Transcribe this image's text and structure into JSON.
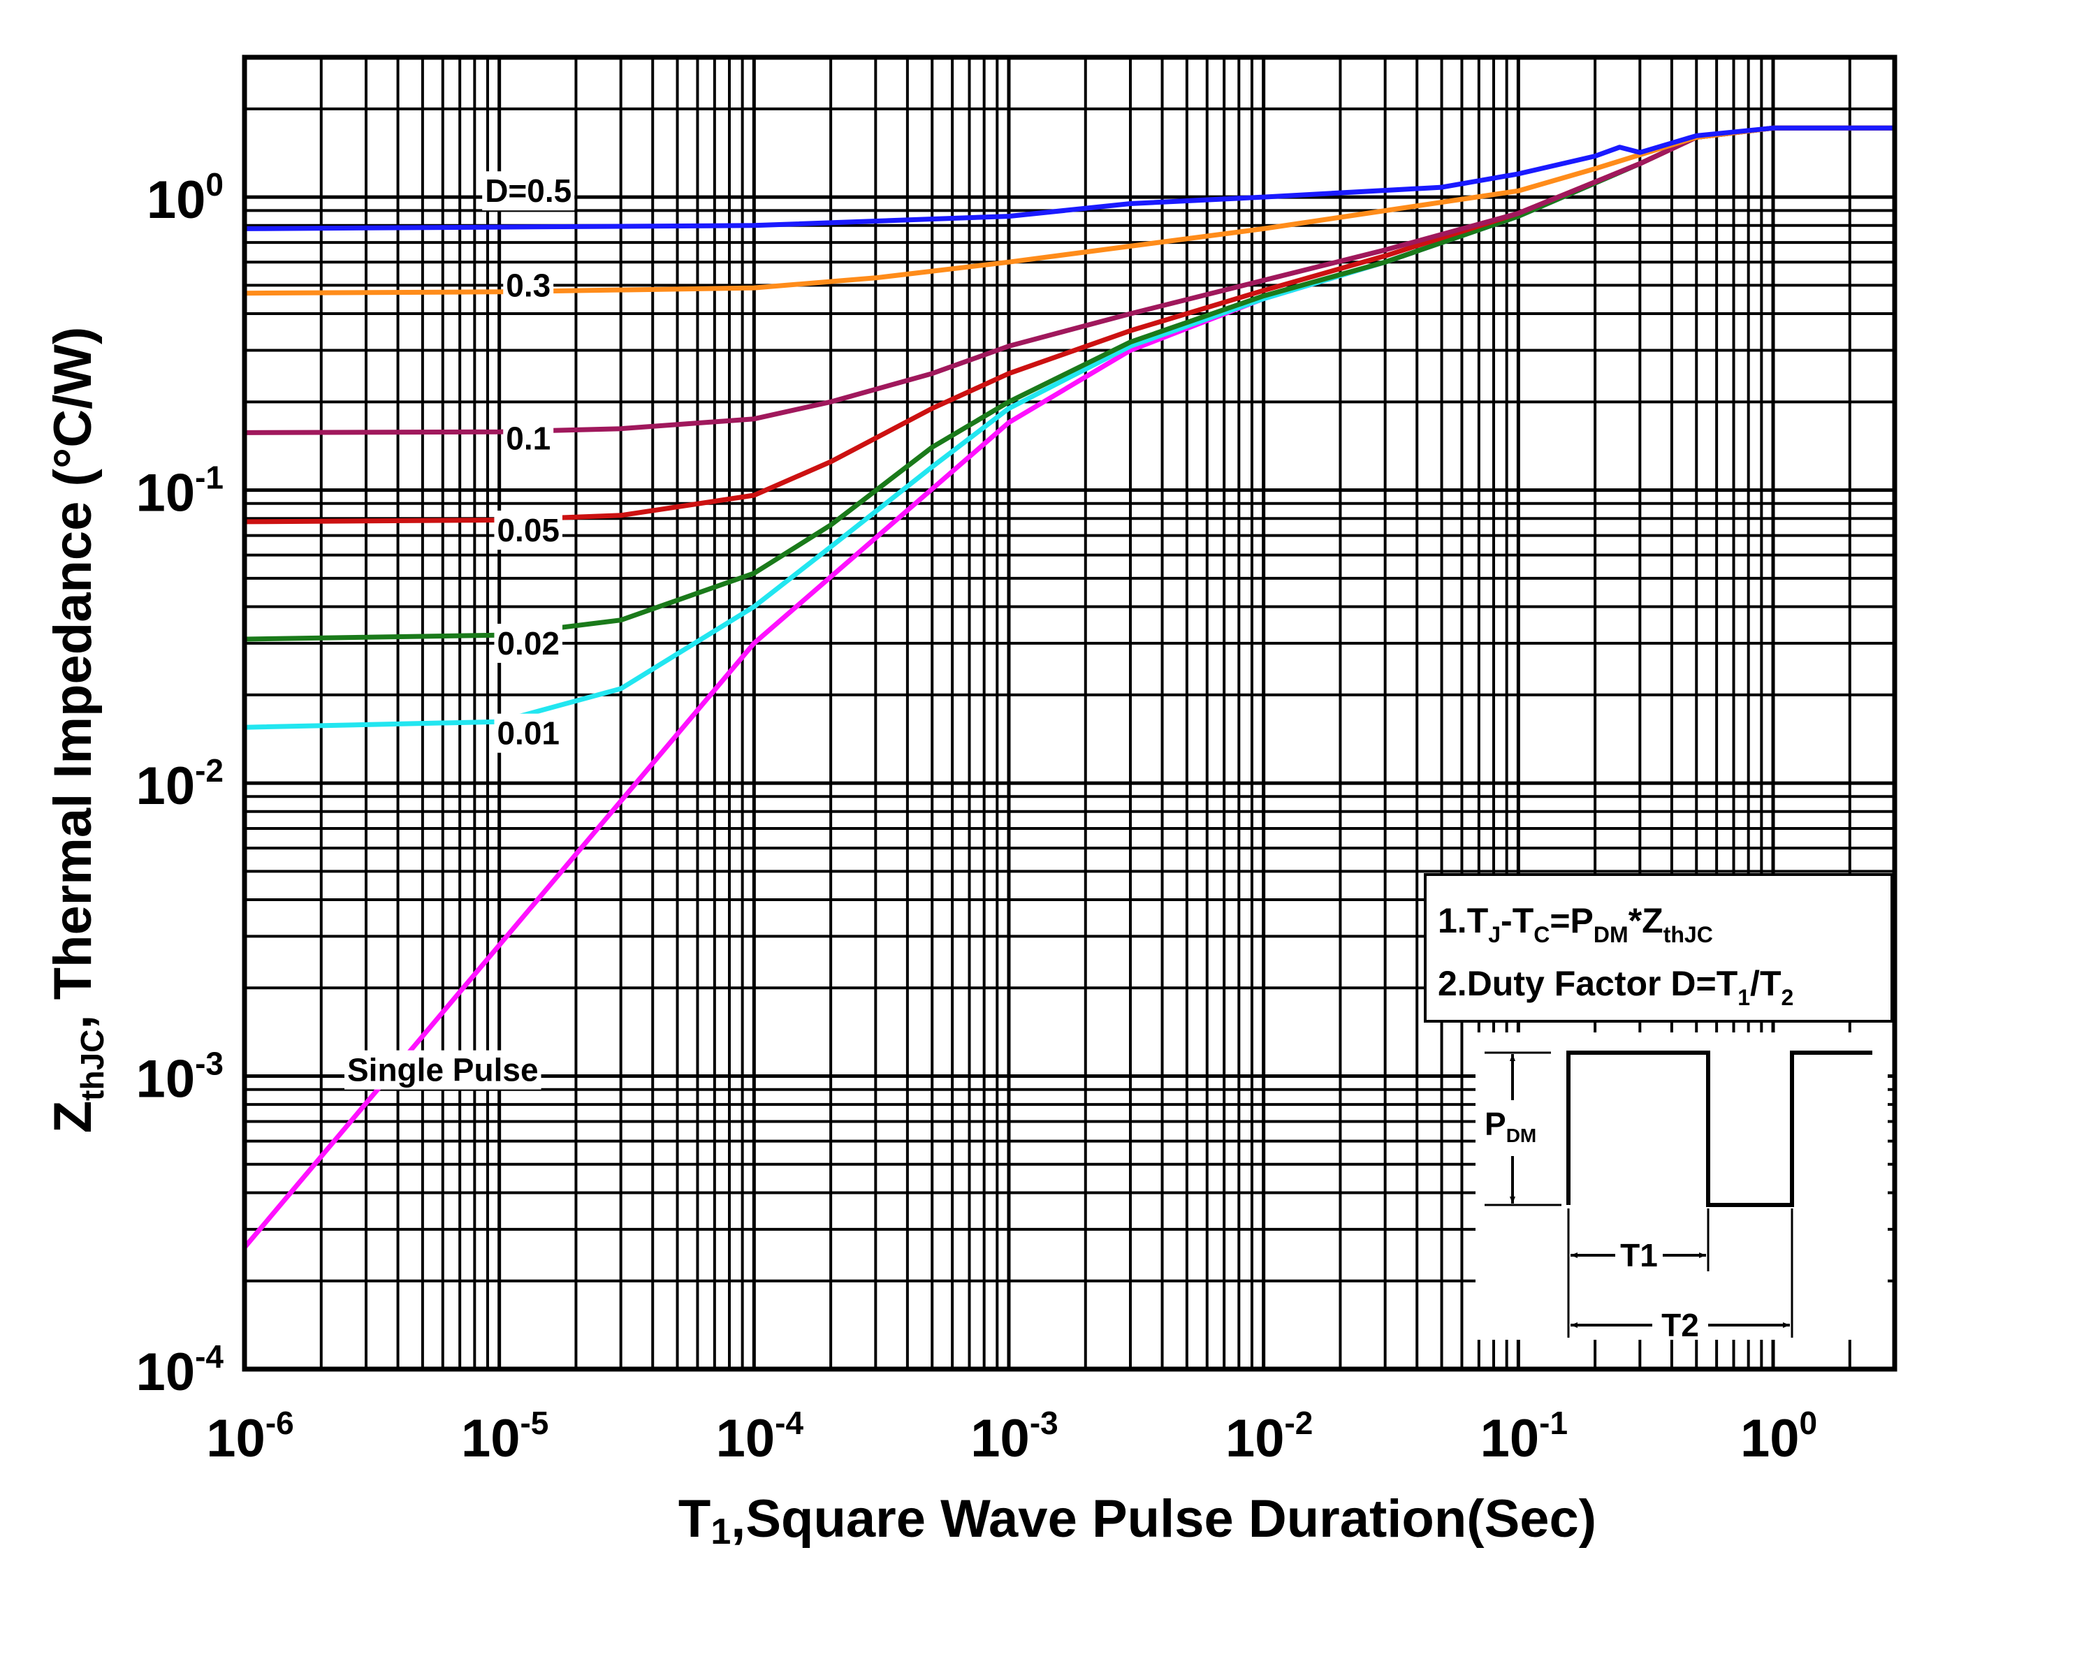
{
  "chart_data": {
    "type": "line",
    "title": "",
    "xlabel": "T1,Square Wave Pulse Duration(Sec)",
    "xlabel_parts": {
      "a": "T",
      "b": "1",
      "c": ",Square Wave Pulse Duration(Sec)"
    },
    "ylabel_parts": {
      "a": "Z",
      "b": "thJC",
      "c": ", Thermal  Impedance (°C/W)"
    },
    "x_scale": "log",
    "y_scale": "log",
    "xlim": [
      1e-06,
      3
    ],
    "ylim": [
      0.0001,
      3
    ],
    "grid": true,
    "x_ticks": [
      {
        "value": 1e-06,
        "base": "10",
        "exp": "-6"
      },
      {
        "value": 1e-05,
        "base": "10",
        "exp": "-5"
      },
      {
        "value": 0.0001,
        "base": "10",
        "exp": "-4"
      },
      {
        "value": 0.001,
        "base": "10",
        "exp": "-3"
      },
      {
        "value": 0.01,
        "base": "10",
        "exp": "-2"
      },
      {
        "value": 0.1,
        "base": "10",
        "exp": "-1"
      },
      {
        "value": 1,
        "base": "10",
        "exp": "0"
      }
    ],
    "y_ticks": [
      {
        "value": 0.0001,
        "base": "10",
        "exp": "-4"
      },
      {
        "value": 0.001,
        "base": "10",
        "exp": "-3"
      },
      {
        "value": 0.01,
        "base": "10",
        "exp": "-2"
      },
      {
        "value": 0.1,
        "base": "10",
        "exp": "-1"
      },
      {
        "value": 1,
        "base": "10",
        "exp": "0"
      }
    ],
    "series": [
      {
        "name": "D=0.5",
        "label": "D=0.5",
        "color": "#1a1aff",
        "label_at": [
          1.3e-05,
          1.05
        ],
        "points": [
          [
            1e-06,
            0.78
          ],
          [
            1e-05,
            0.79
          ],
          [
            0.0001,
            0.8
          ],
          [
            0.001,
            0.86
          ],
          [
            0.003,
            0.95
          ],
          [
            0.01,
            1.0
          ],
          [
            0.05,
            1.08
          ],
          [
            0.1,
            1.2
          ],
          [
            0.2,
            1.38
          ],
          [
            0.25,
            1.48
          ],
          [
            0.3,
            1.42
          ],
          [
            0.5,
            1.62
          ],
          [
            1,
            1.72
          ],
          [
            3,
            1.72
          ]
        ]
      },
      {
        "name": "0.3",
        "label": "0.3",
        "color": "#ff8c1a",
        "label_at": [
          1.3e-05,
          0.5
        ],
        "points": [
          [
            1e-06,
            0.47
          ],
          [
            1e-05,
            0.475
          ],
          [
            0.0001,
            0.49
          ],
          [
            0.0003,
            0.53
          ],
          [
            0.001,
            0.6
          ],
          [
            0.01,
            0.78
          ],
          [
            0.1,
            1.05
          ],
          [
            0.2,
            1.25
          ],
          [
            0.5,
            1.6
          ],
          [
            1,
            1.72
          ],
          [
            3,
            1.72
          ]
        ]
      },
      {
        "name": "0.1",
        "label": "0.1",
        "color": "#a0185c",
        "label_at": [
          1.3e-05,
          0.15
        ],
        "points": [
          [
            1e-06,
            0.157
          ],
          [
            1e-05,
            0.158
          ],
          [
            3e-05,
            0.162
          ],
          [
            0.0001,
            0.175
          ],
          [
            0.0002,
            0.2
          ],
          [
            0.0005,
            0.25
          ],
          [
            0.001,
            0.31
          ],
          [
            0.003,
            0.4
          ],
          [
            0.01,
            0.52
          ],
          [
            0.03,
            0.66
          ],
          [
            0.1,
            0.88
          ],
          [
            0.3,
            1.3
          ],
          [
            0.5,
            1.6
          ],
          [
            1,
            1.72
          ],
          [
            3,
            1.72
          ]
        ]
      },
      {
        "name": "0.05",
        "label": "0.05",
        "color": "#cc1111",
        "label_at": [
          1.3e-05,
          0.073
        ],
        "points": [
          [
            1e-06,
            0.078
          ],
          [
            1e-05,
            0.079
          ],
          [
            3e-05,
            0.082
          ],
          [
            0.0001,
            0.096
          ],
          [
            0.0002,
            0.125
          ],
          [
            0.0005,
            0.19
          ],
          [
            0.001,
            0.25
          ],
          [
            0.003,
            0.35
          ],
          [
            0.01,
            0.48
          ],
          [
            0.03,
            0.63
          ],
          [
            0.1,
            0.88
          ],
          [
            0.3,
            1.3
          ],
          [
            0.5,
            1.6
          ],
          [
            1,
            1.72
          ],
          [
            3,
            1.72
          ]
        ]
      },
      {
        "name": "0.02",
        "label": "0.02",
        "color": "#1a7a1a",
        "label_at": [
          1.3e-05,
          0.03
        ],
        "points": [
          [
            1e-06,
            0.031
          ],
          [
            1e-05,
            0.032
          ],
          [
            3e-05,
            0.036
          ],
          [
            0.0001,
            0.052
          ],
          [
            0.0002,
            0.076
          ],
          [
            0.0005,
            0.14
          ],
          [
            0.001,
            0.2
          ],
          [
            0.003,
            0.32
          ],
          [
            0.01,
            0.46
          ],
          [
            0.03,
            0.6
          ],
          [
            0.1,
            0.86
          ],
          [
            0.3,
            1.3
          ],
          [
            0.5,
            1.6
          ],
          [
            1,
            1.72
          ],
          [
            3,
            1.72
          ]
        ]
      },
      {
        "name": "0.01",
        "label": "0.01",
        "color": "#22e6f0",
        "label_at": [
          1.3e-05,
          0.0148
        ],
        "points": [
          [
            1e-06,
            0.0155
          ],
          [
            1e-05,
            0.0162
          ],
          [
            3e-05,
            0.021
          ],
          [
            0.0001,
            0.04
          ],
          [
            0.0002,
            0.064
          ],
          [
            0.0005,
            0.12
          ],
          [
            0.001,
            0.19
          ],
          [
            0.003,
            0.31
          ],
          [
            0.01,
            0.45
          ],
          [
            0.03,
            0.6
          ],
          [
            0.1,
            0.86
          ],
          [
            0.3,
            1.3
          ],
          [
            0.5,
            1.6
          ],
          [
            1,
            1.72
          ],
          [
            3,
            1.72
          ]
        ]
      },
      {
        "name": "Single Pulse",
        "label": "Single Pulse",
        "color": "#ff10ff",
        "label_at": [
          6e-06,
          0.00105
        ],
        "points": [
          [
            1e-06,
            0.00026
          ],
          [
            1e-05,
            0.0028
          ],
          [
            0.0001,
            0.03
          ],
          [
            0.001,
            0.17
          ],
          [
            0.003,
            0.3
          ],
          [
            0.01,
            0.45
          ],
          [
            0.03,
            0.6
          ],
          [
            0.1,
            0.86
          ],
          [
            0.3,
            1.3
          ],
          [
            0.5,
            1.6
          ],
          [
            1,
            1.72
          ],
          [
            3,
            1.72
          ]
        ]
      }
    ]
  },
  "notes": {
    "line1": {
      "a": "1.T",
      "b": "J",
      "c": "-T",
      "d": "C",
      "e": "=P",
      "f": "DM",
      "g": "*Z",
      "h": "thJC"
    },
    "line2": {
      "a": "2.Duty Factor D=T",
      "b": "1",
      "c": "/T",
      "d": "2"
    }
  },
  "waveform": {
    "pdm": {
      "a": "P",
      "b": "DM"
    },
    "t1": "T1",
    "t2": "T2"
  }
}
